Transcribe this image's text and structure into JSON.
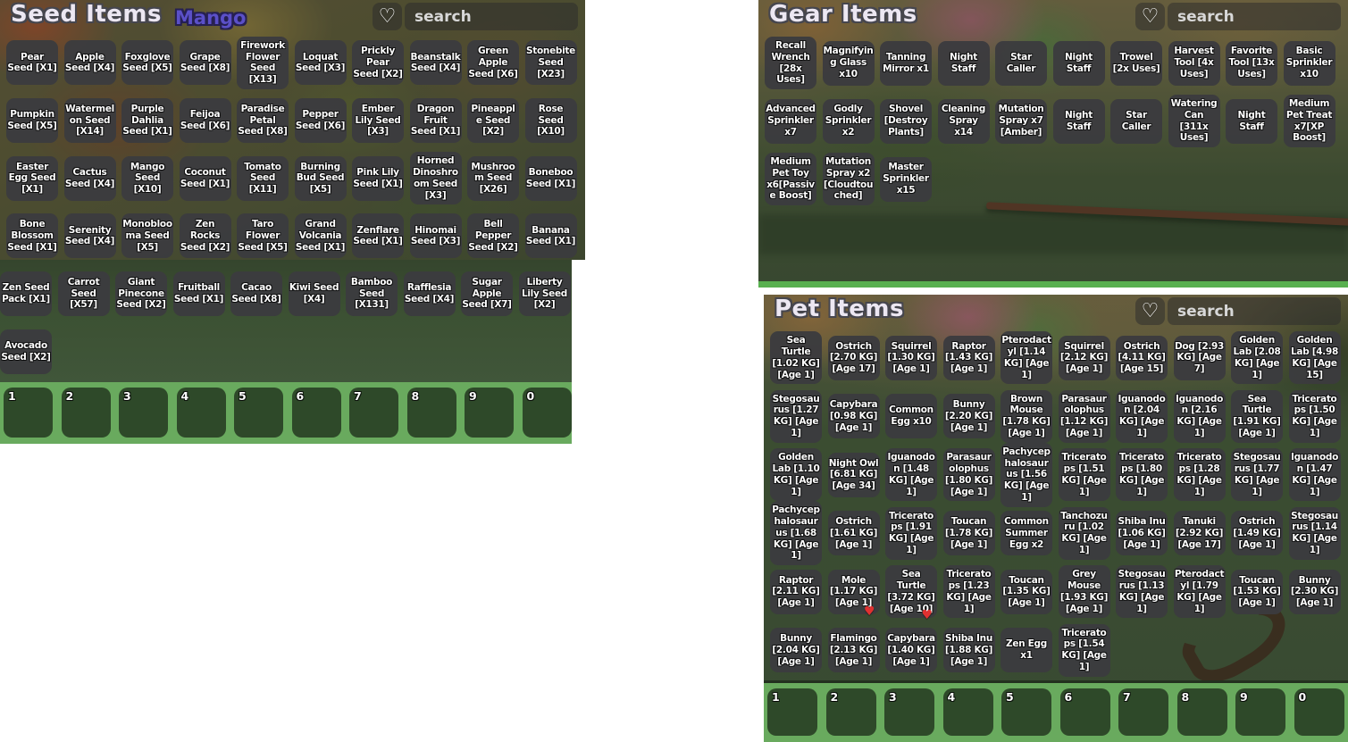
{
  "colors": {
    "hotbar_green": "#69aa5e",
    "slot_green": "#2e4929",
    "cell_gray": "#3b3b3e",
    "mango_purple": "#5b50c8",
    "favorite_red": "#e03131",
    "grass_green": "#40553a",
    "title_white": "#ece7f2"
  },
  "hotbar": {
    "slots": [
      "1",
      "2",
      "3",
      "4",
      "5",
      "6",
      "7",
      "8",
      "9",
      "0"
    ]
  },
  "panels": {
    "seed": {
      "title": "Seed Items",
      "tooltip": "Mango",
      "search_placeholder": "search",
      "heart_icon": "heart-outline",
      "rows": [
        [
          "Pear Seed [X1]",
          "Apple Seed [X4]",
          "Foxglove Seed [X5]",
          "Grape Seed [X8]",
          "Firework Flower Seed [X13]",
          "Loquat Seed [X3]",
          "Prickly Pear Seed [X2]",
          "Beanstalk Seed [X4]",
          "Green Apple Seed [X6]",
          "Stonebite Seed [X23]"
        ],
        [
          "Pumpkin Seed [X5]",
          "Watermelon Seed [X14]",
          "Purple Dahlia Seed [X1]",
          "Feijoa Seed [X6]",
          "Paradise Petal Seed [X8]",
          "Pepper Seed [X6]",
          "Ember Lily Seed [X3]",
          "Dragon Fruit Seed [X1]",
          "Pineapple Seed [X2]",
          "Rose Seed [X10]"
        ],
        [
          "Easter Egg Seed [X1]",
          "Cactus Seed [X4]",
          "Mango Seed [X10]",
          "Coconut Seed [X1]",
          "Tomato Seed [X11]",
          "Burning Bud Seed [X5]",
          "Pink Lily Seed [X1]",
          "Horned Dinoshroom Seed [X3]",
          "Mushroom Seed [X26]",
          "Boneboo Seed [X1]"
        ],
        [
          "Bone Blossom Seed [X1]",
          "Serenity Seed [X4]",
          "Monoblooma Seed [X5]",
          "Zen Rocks Seed [X2]",
          "Taro Flower Seed [X5]",
          "Grand Volcania Seed [X1]",
          "Zenflare Seed [X1]",
          "Hinomai Seed [X3]",
          "Bell Pepper Seed [X2]",
          "Banana Seed [X1]"
        ],
        [
          "Zen Seed Pack [X1]",
          "Carrot Seed [X57]",
          "Giant Pinecone Seed [X2]",
          "Fruitball Seed [X1]",
          "Cacao Seed [X8]",
          "Kiwi Seed [X4]",
          "Bamboo Seed [X131]",
          "Rafflesia Seed [X4]",
          "Sugar Apple Seed [X7]",
          "Liberty Lily Seed [X2]"
        ],
        [
          "Avocado Seed [X2]"
        ]
      ],
      "favorites": []
    },
    "gear": {
      "title": "Gear Items",
      "search_placeholder": "search",
      "heart_icon": "heart-outline",
      "rows": [
        [
          "Recall Wrench [28x Uses]",
          "Magnifying Glass x10",
          "Tanning Mirror x1",
          "Night Staff",
          "Star Caller",
          "Night Staff",
          "Trowel [2x Uses]",
          "Harvest Tool [4x Uses]",
          "Favorite Tool [13x Uses]",
          "Basic Sprinkler x10"
        ],
        [
          "Advanced Sprinkler x7",
          "Godly Sprinkler x2",
          "Shovel [Destroy Plants]",
          "Cleaning Spray x14",
          "Mutation Spray x7 [Amber]",
          "Night Staff",
          "Star Caller",
          "Watering Can [311x Uses]",
          "Night Staff",
          "Medium Pet Treat x7[XP Boost]"
        ],
        [
          "Medium Pet Toy x6[Passive Boost]",
          "Mutation Spray x2 [Cloudtouched]",
          "Master Sprinkler x15"
        ]
      ],
      "favorites": []
    },
    "pet": {
      "title": "Pet Items",
      "search_placeholder": "search",
      "heart_icon": "heart-outline",
      "rows": [
        [
          "Sea Turtle [1.02 KG] [Age 1]",
          "Ostrich [2.70 KG] [Age 17]",
          "Squirrel [1.30 KG] [Age 1]",
          "Raptor [1.43 KG] [Age 1]",
          "Pterodactyl [1.14 KG] [Age 1]",
          "Squirrel [2.12 KG] [Age 1]",
          "Ostrich [4.11 KG] [Age 15]",
          "Dog [2.93 KG] [Age 7]",
          "Golden Lab [2.08 KG] [Age 1]",
          "Golden Lab [4.98 KG] [Age 15]"
        ],
        [
          "Stegosaurus [1.27 KG] [Age 1]",
          "Capybara [0.98 KG] [Age 1]",
          "Common Egg x10",
          "Bunny [2.20 KG] [Age 1]",
          "Brown Mouse [1.78 KG] [Age 1]",
          "Parasaurolophus [1.12 KG] [Age 1]",
          "Iguanodon [2.04 KG] [Age 1]",
          "Iguanodon [2.16 KG] [Age 1]",
          "Sea Turtle [1.91 KG] [Age 1]",
          "Triceratops [1.50 KG] [Age 1]"
        ],
        [
          "Golden Lab [1.10 KG] [Age 1]",
          "Night Owl [6.81 KG] [Age 34]",
          "Iguanodon [1.48 KG] [Age 1]",
          "Parasaurolophus [1.80 KG] [Age 1]",
          "Pachycephalosaurus [1.56 KG] [Age 1]",
          "Triceratops [1.51 KG] [Age 1]",
          "Triceratops [1.80 KG] [Age 1]",
          "Triceratops [1.28 KG] [Age 1]",
          "Stegosaurus [1.77 KG] [Age 1]",
          "Iguanodon [1.47 KG] [Age 1]"
        ],
        [
          "Pachycephalosaurus [1.68 KG] [Age 1]",
          "Ostrich [1.61 KG] [Age 1]",
          "Triceratops [1.91 KG] [Age 1]",
          "Toucan [1.78 KG] [Age 1]",
          "Common Summer Egg x2",
          "Tanchozuru [1.02 KG] [Age 1]",
          "Shiba Inu [1.06 KG] [Age 1]",
          "Tanuki [2.92 KG] [Age 17]",
          "Ostrich [1.49 KG] [Age 1]",
          "Stegosaurus [1.14 KG] [Age 1]"
        ],
        [
          "Raptor [2.11 KG] [Age 1]",
          "Mole [1.17 KG] [Age 1]",
          "Sea Turtle [3.72 KG] [Age 10]",
          "Triceratops [1.23 KG] [Age 1]",
          "Toucan [1.35 KG] [Age 1]",
          "Grey Mouse [1.93 KG] [Age 1]",
          "Stegosaurus [1.13 KG] [Age 1]",
          "Pterodactyl [1.79 KG] [Age 1]",
          "Toucan [1.53 KG] [Age 1]",
          "Bunny [2.30 KG] [Age 1]"
        ],
        [
          "Bunny [2.04 KG] [Age 1]",
          "Flamingo [2.13 KG] [Age 1]",
          "Capybara [1.40 KG] [Age 1]",
          "Shiba Inu [1.88 KG] [Age 1]",
          "Zen Egg x1",
          "Triceratops [1.54 KG] [Age 1]"
        ]
      ],
      "favorites": [
        [
          4,
          1
        ],
        [
          4,
          2
        ]
      ]
    }
  }
}
